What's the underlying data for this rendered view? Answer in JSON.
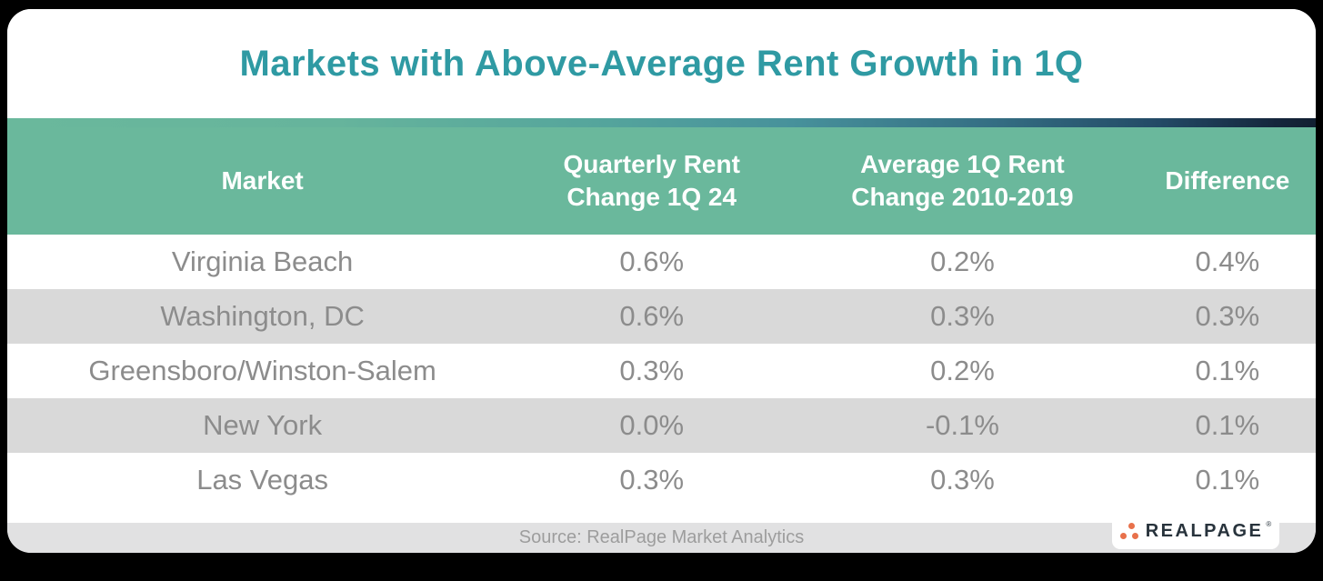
{
  "title": "Markets with Above-Average Rent Growth in 1Q",
  "colors": {
    "background": "#000000",
    "card_background": "#ffffff",
    "title_teal": "#2f9aa3",
    "header_green": "#6ab89c",
    "row_alt_gray": "#d9d9d9",
    "row_text_gray": "#8c8c8c",
    "footer_bar_gray": "#e1e1e2",
    "footer_text_gray": "#9d9d9d",
    "gradient_left": "#6ab89c",
    "gradient_right": "#121f31",
    "logo_dot_orange": "#e8714b",
    "logo_text_dark": "#28333c"
  },
  "chart_data": {
    "type": "table",
    "title": "Markets with Above-Average Rent Growth in 1Q",
    "columns": [
      "Market",
      "Quarterly Rent Change 1Q 24",
      "Average 1Q Rent Change 2010-2019",
      "Difference"
    ],
    "rows": [
      [
        "Virginia Beach",
        "0.6%",
        "0.2%",
        "0.4%"
      ],
      [
        "Washington, DC",
        "0.6%",
        "0.3%",
        "0.3%"
      ],
      [
        "Greensboro/Winston-Salem",
        "0.3%",
        "0.2%",
        "0.1%"
      ],
      [
        "New York",
        "0.0%",
        "-0.1%",
        "0.1%"
      ],
      [
        "Las Vegas",
        "0.3%",
        "0.3%",
        "0.1%"
      ]
    ]
  },
  "table": {
    "header": {
      "market": "Market",
      "col2_line1": "Quarterly Rent",
      "col2_line2": "Change 1Q 24",
      "col3_line1": "Average 1Q Rent",
      "col3_line2": "Change 2010-2019",
      "difference": "Difference"
    },
    "rows": [
      {
        "market": "Virginia Beach",
        "quarterly": "0.6%",
        "average": "0.2%",
        "difference": "0.4%"
      },
      {
        "market": "Washington, DC",
        "quarterly": "0.6%",
        "average": "0.3%",
        "difference": "0.3%"
      },
      {
        "market": "Greensboro/Winston-Salem",
        "quarterly": "0.3%",
        "average": "0.2%",
        "difference": "0.1%"
      },
      {
        "market": "New York",
        "quarterly": "0.0%",
        "average": "-0.1%",
        "difference": "0.1%"
      },
      {
        "market": "Las Vegas",
        "quarterly": "0.3%",
        "average": "0.3%",
        "difference": "0.1%"
      }
    ]
  },
  "footer": {
    "source": "Source: RealPage Market Analytics",
    "logo_text": "REALPAGE",
    "logo_trademark": "®"
  }
}
